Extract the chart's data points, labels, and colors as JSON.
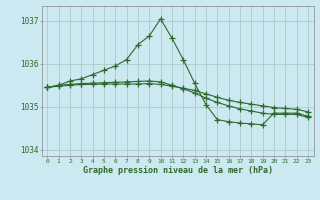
{
  "title": "Graphe pression niveau de la mer (hPa)",
  "bg_color": "#cce8f0",
  "grid_color": "#aacccc",
  "line_color": "#2d6a2d",
  "xlim": [
    -0.5,
    23.5
  ],
  "ylim": [
    1033.85,
    1037.35
  ],
  "yticks": [
    1034,
    1035,
    1036,
    1037
  ],
  "xtick_labels": [
    "0",
    "1",
    "2",
    "3",
    "4",
    "5",
    "6",
    "7",
    "8",
    "9",
    "10",
    "11",
    "12",
    "13",
    "14",
    "15",
    "16",
    "17",
    "18",
    "19",
    "20",
    "21",
    "22",
    "23"
  ],
  "series_peak": {
    "x": [
      0,
      1,
      2,
      3,
      4,
      5,
      6,
      7,
      8,
      9,
      10,
      11,
      12,
      13,
      14,
      15,
      16,
      17,
      18,
      19,
      20,
      21,
      22,
      23
    ],
    "y": [
      1035.45,
      1035.5,
      1035.6,
      1035.65,
      1035.75,
      1035.85,
      1035.95,
      1036.1,
      1036.45,
      1036.65,
      1037.05,
      1036.6,
      1036.1,
      1035.55,
      1035.05,
      1034.7,
      1034.65,
      1034.62,
      1034.6,
      1034.58,
      1034.85,
      1034.85,
      1034.85,
      1034.78
    ]
  },
  "series_decline": {
    "x": [
      0,
      1,
      2,
      3,
      4,
      5,
      6,
      7,
      8,
      9,
      10,
      11,
      12,
      13,
      14,
      15,
      16,
      17,
      18,
      19,
      20,
      21,
      22,
      23
    ],
    "y": [
      1035.45,
      1035.5,
      1035.52,
      1035.54,
      1035.55,
      1035.56,
      1035.57,
      1035.58,
      1035.59,
      1035.6,
      1035.58,
      1035.5,
      1035.42,
      1035.32,
      1035.2,
      1035.1,
      1035.02,
      1034.95,
      1034.9,
      1034.85,
      1034.82,
      1034.82,
      1034.82,
      1034.75
    ]
  },
  "series_flat": {
    "x": [
      0,
      1,
      2,
      3,
      4,
      5,
      6,
      7,
      8,
      9,
      10,
      11,
      12,
      13,
      14,
      15,
      16,
      17,
      18,
      19,
      20,
      21,
      22,
      23
    ],
    "y": [
      1035.45,
      1035.48,
      1035.5,
      1035.52,
      1035.52,
      1035.53,
      1035.53,
      1035.53,
      1035.53,
      1035.54,
      1035.52,
      1035.48,
      1035.43,
      1035.38,
      1035.3,
      1035.22,
      1035.15,
      1035.1,
      1035.06,
      1035.02,
      1034.98,
      1034.96,
      1034.94,
      1034.88
    ]
  }
}
